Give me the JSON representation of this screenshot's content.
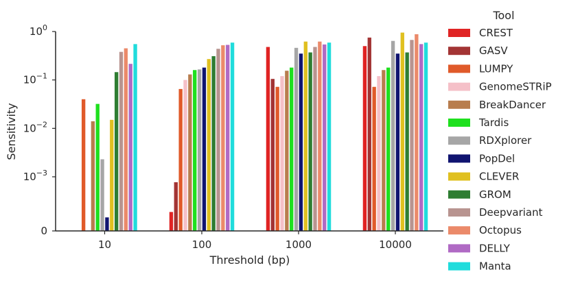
{
  "chart_data": {
    "type": "bar",
    "xlabel": "Threshold (bp)",
    "ylabel": "Sensitivity",
    "yscale": "symlog",
    "linthresh": 0.001,
    "ylim": [
      0,
      1
    ],
    "yticks": [
      {
        "value": 0,
        "base": "0",
        "exp": ""
      },
      {
        "value": 0.001,
        "base": "10",
        "exp": "−3"
      },
      {
        "value": 0.01,
        "base": "10",
        "exp": "−2"
      },
      {
        "value": 0.1,
        "base": "10",
        "exp": "−1"
      },
      {
        "value": 1,
        "base": "10",
        "exp": "0"
      }
    ],
    "categories": [
      "10",
      "100",
      "1000",
      "10000"
    ],
    "legend_title": "Tool",
    "series": [
      {
        "name": "CREST",
        "color": "#e02424",
        "values": [
          0,
          0.00035,
          0.48,
          0.5
        ]
      },
      {
        "name": "GASV",
        "color": "#a33434",
        "values": [
          0,
          0.0009,
          0.105,
          0.75
        ]
      },
      {
        "name": "LUMPY",
        "color": "#e05a2a",
        "values": [
          0.04,
          0.065,
          0.072,
          0.072
        ]
      },
      {
        "name": "GenomeSTRiP",
        "color": "#f5c0c8",
        "values": [
          0,
          0.1,
          0.12,
          0.12
        ]
      },
      {
        "name": "BreakDancer",
        "color": "#b87d4e",
        "values": [
          0.014,
          0.13,
          0.155,
          0.16
        ]
      },
      {
        "name": "Tardis",
        "color": "#1ee01e",
        "values": [
          0.032,
          0.16,
          0.18,
          0.18
        ]
      },
      {
        "name": "RDXplorer",
        "color": "#a6a6a6",
        "values": [
          0.0023,
          0.165,
          0.46,
          0.64
        ]
      },
      {
        "name": "PopDel",
        "color": "#101470",
        "values": [
          0.00025,
          0.18,
          0.35,
          0.35
        ]
      },
      {
        "name": "CLEVER",
        "color": "#e0c020",
        "values": [
          0.015,
          0.27,
          0.62,
          0.95
        ]
      },
      {
        "name": "GROM",
        "color": "#2e7d32",
        "values": [
          0.145,
          0.31,
          0.37,
          0.37
        ]
      },
      {
        "name": "Deepvariant",
        "color": "#b89490",
        "values": [
          0.38,
          0.44,
          0.48,
          0.67
        ]
      },
      {
        "name": "Octopus",
        "color": "#eb8a6a",
        "values": [
          0.45,
          0.52,
          0.62,
          0.88
        ]
      },
      {
        "name": "DELLY",
        "color": "#b06ac4",
        "values": [
          0.215,
          0.53,
          0.54,
          0.55
        ]
      },
      {
        "name": "Manta",
        "color": "#20dcdc",
        "values": [
          0.55,
          0.59,
          0.59,
          0.59
        ]
      }
    ]
  }
}
